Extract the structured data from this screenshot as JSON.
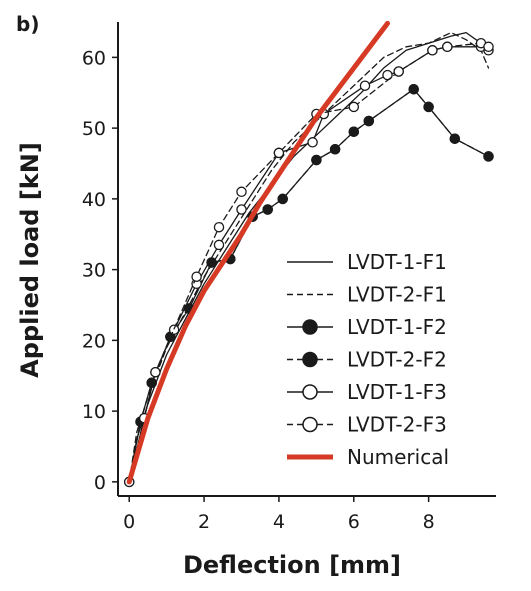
{
  "chart_data": {
    "type": "line",
    "panel_label": "b)",
    "xlabel": "Deflection [mm]",
    "ylabel": "Applied load [kN]",
    "xlim": [
      -0.3,
      9.8
    ],
    "ylim": [
      -2,
      65
    ],
    "xticks": [
      0,
      2,
      4,
      6,
      8
    ],
    "yticks": [
      0,
      10,
      20,
      30,
      40,
      50,
      60
    ],
    "grid": false,
    "legend_position": "bottom-right",
    "series": [
      {
        "name": "LVDT-1-F1",
        "style": "solid",
        "marker": "none",
        "color": "#1a1a1a",
        "points": [
          [
            0,
            0
          ],
          [
            0.2,
            6
          ],
          [
            0.5,
            11
          ],
          [
            1.0,
            18
          ],
          [
            1.5,
            23
          ],
          [
            2.0,
            28
          ],
          [
            2.6,
            33
          ],
          [
            3.2,
            38
          ],
          [
            3.8,
            42
          ],
          [
            4.4,
            46
          ],
          [
            5.0,
            49
          ],
          [
            5.6,
            52
          ],
          [
            6.2,
            55
          ],
          [
            6.8,
            58.5
          ],
          [
            7.4,
            61
          ],
          [
            8.0,
            62
          ],
          [
            8.6,
            63
          ],
          [
            9.0,
            63.5
          ],
          [
            9.4,
            62
          ],
          [
            9.6,
            60.5
          ]
        ]
      },
      {
        "name": "LVDT-2-F1",
        "style": "dashed",
        "marker": "none",
        "color": "#1a1a1a",
        "points": [
          [
            0,
            0
          ],
          [
            0.2,
            7
          ],
          [
            0.5,
            12
          ],
          [
            1.0,
            19
          ],
          [
            1.5,
            24
          ],
          [
            2.0,
            29
          ],
          [
            2.6,
            34
          ],
          [
            3.2,
            39
          ],
          [
            3.8,
            44
          ],
          [
            4.4,
            48
          ],
          [
            5.0,
            51
          ],
          [
            5.6,
            54
          ],
          [
            6.2,
            57
          ],
          [
            6.8,
            60
          ],
          [
            7.4,
            61.5
          ],
          [
            8.0,
            62
          ],
          [
            8.6,
            63.5
          ],
          [
            9.0,
            62.5
          ],
          [
            9.4,
            61
          ],
          [
            9.6,
            58.5
          ]
        ]
      },
      {
        "name": "LVDT-1-F2",
        "style": "solid",
        "marker": "filled",
        "color": "#1a1a1a",
        "points": [
          [
            0,
            0
          ],
          [
            0.3,
            8.5
          ],
          [
            0.6,
            14
          ],
          [
            1.1,
            20.5
          ],
          [
            1.6,
            24.5
          ],
          [
            2.2,
            31
          ],
          [
            2.7,
            31.5
          ],
          [
            3.3,
            37.5
          ],
          [
            3.7,
            38.5
          ],
          [
            4.1,
            40
          ],
          [
            5.0,
            45.5
          ],
          [
            5.5,
            47
          ],
          [
            6.0,
            49.5
          ],
          [
            6.4,
            51
          ],
          [
            7.6,
            55.5
          ],
          [
            8.0,
            53
          ],
          [
            8.7,
            48.5
          ],
          [
            9.6,
            46
          ]
        ]
      },
      {
        "name": "LVDT-2-F2",
        "style": "dashed",
        "marker": "filled",
        "color": "#1a1a1a",
        "points": [
          [
            0,
            0
          ],
          [
            0.3,
            8.5
          ],
          [
            0.6,
            14
          ],
          [
            1.1,
            20.5
          ],
          [
            1.6,
            24.5
          ],
          [
            2.2,
            31
          ],
          [
            2.7,
            31.5
          ],
          [
            3.3,
            37.5
          ],
          [
            3.7,
            38.5
          ],
          [
            4.1,
            40
          ],
          [
            5.0,
            45.5
          ],
          [
            5.5,
            47
          ],
          [
            6.0,
            49.5
          ],
          [
            6.4,
            51
          ],
          [
            7.6,
            55.5
          ],
          [
            8.0,
            53
          ],
          [
            8.7,
            48.5
          ],
          [
            9.6,
            46
          ]
        ]
      },
      {
        "name": "LVDT-1-F3",
        "style": "solid",
        "marker": "open",
        "color": "#1a1a1a",
        "points": [
          [
            0,
            0
          ],
          [
            0.4,
            9
          ],
          [
            0.7,
            15.5
          ],
          [
            1.2,
            21.5
          ],
          [
            1.8,
            28
          ],
          [
            2.4,
            33.5
          ],
          [
            3.0,
            38.5
          ],
          [
            4.0,
            46.5
          ],
          [
            4.9,
            48
          ],
          [
            5.2,
            52
          ],
          [
            6.3,
            56
          ],
          [
            6.9,
            57.5
          ],
          [
            7.2,
            58
          ],
          [
            8.1,
            61
          ],
          [
            8.5,
            61.5
          ],
          [
            9.4,
            61.5
          ],
          [
            9.6,
            61
          ]
        ]
      },
      {
        "name": "LVDT-2-F3",
        "style": "dashed",
        "marker": "open",
        "color": "#1a1a1a",
        "points": [
          [
            0,
            0
          ],
          [
            0.4,
            9
          ],
          [
            0.7,
            15.5
          ],
          [
            1.8,
            29
          ],
          [
            2.4,
            36
          ],
          [
            3.0,
            41
          ],
          [
            4.0,
            46.5
          ],
          [
            5.0,
            52
          ],
          [
            6.0,
            53
          ],
          [
            7.2,
            58
          ],
          [
            8.1,
            61
          ],
          [
            8.5,
            61.5
          ],
          [
            9.4,
            62
          ],
          [
            9.6,
            61.5
          ]
        ]
      },
      {
        "name": "Numerical",
        "style": "solid",
        "marker": "none",
        "color": "#d63a24",
        "points": [
          [
            0,
            0
          ],
          [
            0.5,
            9
          ],
          [
            1.0,
            16
          ],
          [
            1.5,
            22
          ],
          [
            2.0,
            27
          ],
          [
            2.5,
            31
          ],
          [
            3.0,
            35
          ],
          [
            3.5,
            39.5
          ],
          [
            4.0,
            43.5
          ],
          [
            4.5,
            47.5
          ],
          [
            5.0,
            51.5
          ],
          [
            5.5,
            55
          ],
          [
            6.0,
            58.5
          ],
          [
            6.5,
            62
          ],
          [
            6.9,
            64.8
          ]
        ]
      }
    ]
  }
}
